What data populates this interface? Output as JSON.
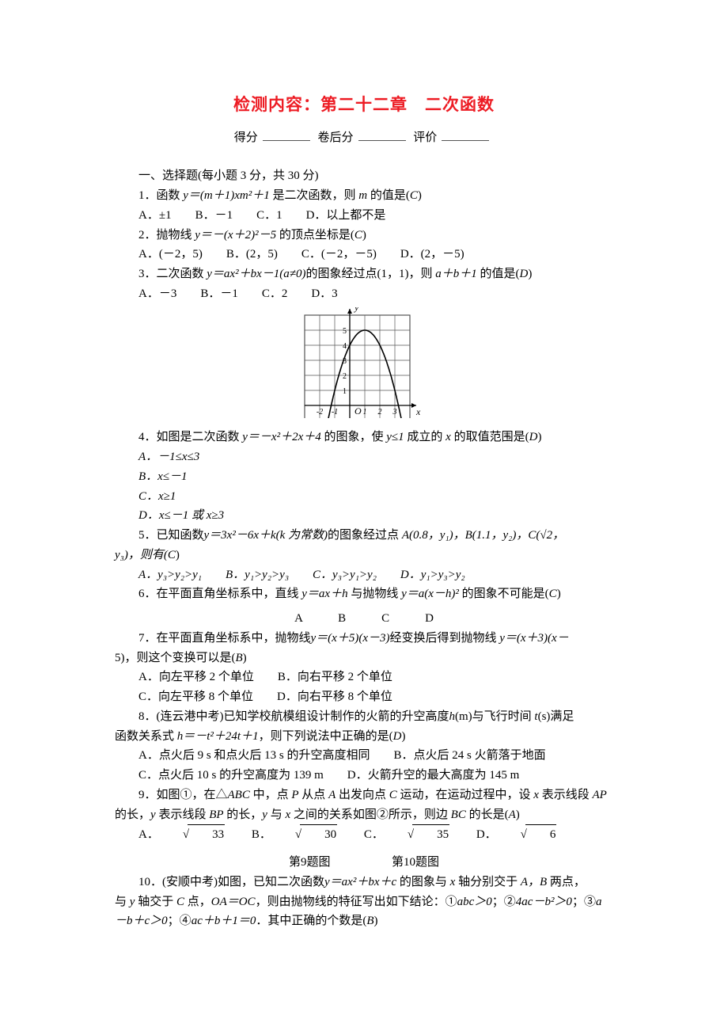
{
  "title": "检测内容：第二十二章　二次函数",
  "score_line": {
    "l1": "得分",
    "l2": "卷后分",
    "l3": "评价"
  },
  "s1": {
    "heading": "一、选择题(每小题 3 分，共 30 分)",
    "q1": {
      "text_a": "1．函数 ",
      "expr": "y＝(m＋1)xm²＋1",
      "text_b": " 是二次函数，则 ",
      "mvar": "m",
      "text_c": " 的值是(",
      "ans": "C",
      "text_d": ")",
      "opts": "A．±1　　B．－1　　C．1　　D．以上都不是"
    },
    "q2": {
      "text_a": "2．抛物线 ",
      "expr": "y＝－(x＋2)²－5",
      "text_b": " 的顶点坐标是(",
      "ans": "C",
      "text_c": ")",
      "opts": "A．(－2，5)　　B．(2，5)　　C．(－2，－5)　　D．(2，－5)"
    },
    "q3": {
      "text_a": "3．二次函数 ",
      "expr": "y＝ax²＋bx－1(a≠0)",
      "text_b": "的图象经过点(1，1)，则 ",
      "exprb": "a＋b＋1",
      "text_c": " 的值是(",
      "ans": "D",
      "text_d": ")",
      "opts": "A．－3　　B．－1　　C．2　　D．3"
    },
    "chart": {
      "type": "parabola-on-grid",
      "width": 190,
      "height": 140,
      "bg": "#ffffff",
      "grid_color": "#555555",
      "axis_color": "#000000",
      "curve_color": "#000000",
      "curve_width": 1.6,
      "label_font": 12,
      "x_ticks": [
        -2,
        -1,
        1,
        2,
        3
      ],
      "y_ticks": [
        1,
        2,
        3,
        4,
        5
      ],
      "origin_label": "O",
      "x_label": "x",
      "y_label": "y",
      "parabola": {
        "a": -1,
        "b": 2,
        "c": 4
      }
    },
    "q4": {
      "text_a": "4．如图是二次函数 ",
      "expr": "y＝－x²＋2x＋4",
      "text_b": " 的图象，使 ",
      "cond": "y≤1",
      "text_c": " 成立的 ",
      "xvar": "x",
      "text_d": " 的取值范围是(",
      "ans": "D",
      "text_e": ")",
      "oa": "A．－1≤x≤3",
      "ob": "B．x≤－1",
      "oc": "C．x≥1",
      "od": "D．x≤－1 或 x≥3"
    },
    "q5": {
      "text_a": "5．已知函数 ",
      "expr": "y＝3x²－6x＋k(k 为常数)",
      "text_b": "的图象经过点 ",
      "pts": "A(0.8，y₁)，B(1.1，y₂)，C(√2，",
      "text_c": "y₃)，则有(",
      "ans": "C",
      "text_d": ")",
      "opts": "A．y₃>y₂>y₁　　B．y₁>y₂>y₃　　C．y₃>y₁>y₂　　D．y₁>y₃>y₂"
    },
    "q6": {
      "text_a": "6．在平面直角坐标系中，直线 ",
      "exprL": "y＝ax＋h",
      "text_b": " 与抛物线 ",
      "exprP": "y＝a(x－h)²",
      "text_c": " 的图象不可能是(",
      "ans": "C",
      "text_d": ")",
      "opts": "A　　　B　　　C　　　D"
    },
    "q7": {
      "text_a": "7．在平面直角坐标系中，抛物线 ",
      "expr1": "y＝(x＋5)(x－3)",
      "text_b": "经变换后得到抛物线 ",
      "expr2": "y＝(x＋3)(x－",
      "tail": "5)，则这个变换可以是(",
      "ans": "B",
      "text_c": ")",
      "oa": "A．向左平移 2 个单位　　B．向右平移 2 个单位",
      "ob": "C．向左平移 8 个单位　　D．向右平移 8 个单位"
    },
    "q8": {
      "text_a": "8．(连云港中考)已知学校航模组设计制作的火箭的升空高度 ",
      "hvar": "h",
      "text_b": "(m)与飞行时间 ",
      "tvar": "t",
      "text_c": "(s)满足",
      "line2": "函数关系式 ",
      "expr": "h＝－t²＋24t＋1",
      "text_d": "，则下列说法中正确的是(",
      "ans": "D",
      "text_e": ")",
      "l1": "A．点火后 9 s 和点火后 13 s 的升空高度相同　　B．点火后 24 s 火箭落于地面",
      "l2": "C．点火后 10 s 的升空高度为 139 m　　D．火箭升空的最大高度为 145 m"
    },
    "q9": {
      "text_a": "9．如图①，在△",
      "abc": "ABC",
      "text_b": " 中，点 ",
      "p": "P",
      "text_c": " 从点 ",
      "a": "A",
      "text_d": " 出发向点 ",
      "c": "C",
      "text_e": " 运动，在运动过程中，设 ",
      "x": "x",
      "text_f": " 表示线段 ",
      "ap": "AP",
      "line2_a": "的长，",
      "y": "y",
      "text_g": " 表示线段 ",
      "bp": "BP",
      "text_h": " 的长，",
      "text_i": "y",
      "text_j": " 与 ",
      "text_k": "x",
      "text_l": " 之间的关系如图②所示，则边 ",
      "bc": "BC",
      "text_m": " 的长是(",
      "ans": "A",
      "text_n": ")",
      "oa_pre": "A．",
      "oa_v": "33",
      "ob_pre": "　　B．",
      "ob_v": "30",
      "oc_pre": "　　C．",
      "oc_v": "35",
      "od_pre": "　　D．",
      "od_v": "6",
      "figlabels": {
        "l": "第9题图",
        "r": "第10题图"
      }
    },
    "q10": {
      "text_a": "10．(安顺中考)如图，已知二次函数 ",
      "expr": "y＝ax²＋bx＋c",
      "text_b": " 的图象与 ",
      "x": "x",
      "text_c": " 轴分别交于 ",
      "ab": "A，B",
      "text_d": " 两点，",
      "line2": "与 ",
      "y": "y",
      "text_e": " 轴交于 ",
      "cpt": "C",
      "text_f": " 点，",
      "oa": "OA＝OC",
      "text_g": "，则由抛物线的特征写出如下结论：①",
      "e1": "abc＞0",
      "text_h": "；②",
      "e2": "4ac－b²＞0",
      "text_i": "；③",
      "e3": "a",
      "line3_a": "－b＋c＞0",
      "text_j": "；④",
      "e4": "ac＋b＋1＝0",
      "text_k": "．其中正确的个数是(",
      "ans": "B",
      "text_l": ")"
    }
  }
}
